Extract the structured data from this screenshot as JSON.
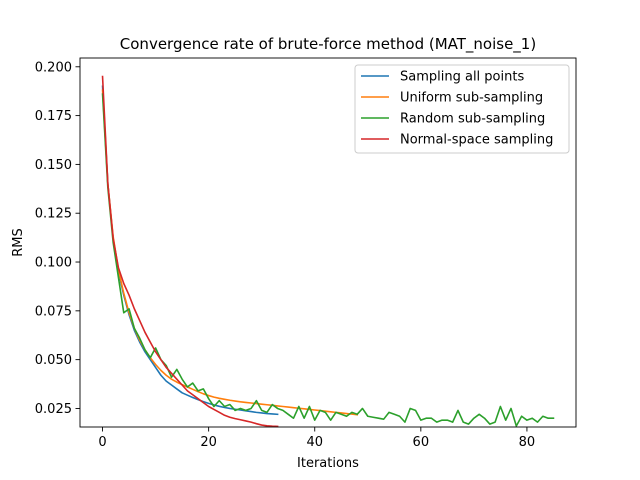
{
  "chart_data": {
    "type": "line",
    "title": "Convergence rate of brute-force method (MAT_noise_1)",
    "xlabel": "Iterations",
    "ylabel": "RMS",
    "xlim": [
      -4.25,
      89.25
    ],
    "ylim": [
      0.0155,
      0.2045
    ],
    "xticks": [
      0,
      20,
      40,
      60,
      80
    ],
    "xtick_labels": [
      "0",
      "20",
      "40",
      "60",
      "80"
    ],
    "yticks": [
      0.025,
      0.05,
      0.075,
      0.1,
      0.125,
      0.15,
      0.175,
      0.2
    ],
    "ytick_labels": [
      "0.025",
      "0.050",
      "0.075",
      "0.100",
      "0.125",
      "0.150",
      "0.175",
      "0.200"
    ],
    "grid": false,
    "legend_position": "top-right",
    "series": [
      {
        "name": "Sampling all points",
        "color": "#1f77b4",
        "x": [
          0,
          1,
          2,
          3,
          4,
          5,
          6,
          7,
          8,
          9,
          10,
          11,
          12,
          13,
          14,
          15,
          16,
          17,
          18,
          19,
          20,
          21,
          22,
          23,
          24,
          25,
          26,
          27,
          28,
          29,
          30,
          31,
          32,
          33
        ],
        "y": [
          0.19,
          0.14,
          0.112,
          0.095,
          0.083,
          0.073,
          0.065,
          0.059,
          0.054,
          0.05,
          0.046,
          0.042,
          0.039,
          0.037,
          0.035,
          0.033,
          0.0318,
          0.0306,
          0.0295,
          0.0285,
          0.0276,
          0.0268,
          0.0261,
          0.0255,
          0.025,
          0.0246,
          0.0242,
          0.0238,
          0.0234,
          0.023,
          0.0227,
          0.0224,
          0.0222,
          0.022
        ]
      },
      {
        "name": "Uniform sub-sampling",
        "color": "#ff7f0e",
        "x": [
          0,
          1,
          2,
          3,
          4,
          5,
          6,
          7,
          8,
          9,
          10,
          11,
          12,
          13,
          14,
          15,
          16,
          17,
          18,
          19,
          20,
          21,
          22,
          23,
          24,
          25,
          26,
          27,
          28,
          29,
          30,
          31,
          32,
          33,
          34,
          35,
          36,
          37,
          38,
          39,
          40,
          41,
          42,
          43,
          44,
          45,
          46,
          47,
          48
        ],
        "y": [
          0.188,
          0.14,
          0.113,
          0.096,
          0.084,
          0.074,
          0.066,
          0.06,
          0.055,
          0.051,
          0.0475,
          0.0445,
          0.042,
          0.04,
          0.0385,
          0.0372,
          0.036,
          0.0348,
          0.0336,
          0.0325,
          0.0316,
          0.0308,
          0.0302,
          0.0297,
          0.0292,
          0.0288,
          0.0284,
          0.0281,
          0.0278,
          0.0275,
          0.0272,
          0.0269,
          0.0266,
          0.0263,
          0.026,
          0.0257,
          0.0254,
          0.0251,
          0.0248,
          0.0245,
          0.0242,
          0.0239,
          0.0236,
          0.0233,
          0.023,
          0.0227,
          0.0224,
          0.0221,
          0.0218
        ]
      },
      {
        "name": "Random sub-sampling",
        "color": "#2ca02c",
        "x": [
          0,
          1,
          2,
          3,
          4,
          5,
          6,
          7,
          8,
          9,
          10,
          11,
          12,
          13,
          14,
          15,
          16,
          17,
          18,
          19,
          20,
          21,
          22,
          23,
          24,
          25,
          26,
          27,
          28,
          29,
          30,
          31,
          32,
          33,
          34,
          35,
          36,
          37,
          38,
          39,
          40,
          41,
          42,
          43,
          44,
          45,
          46,
          47,
          48,
          49,
          50,
          51,
          52,
          53,
          54,
          55,
          56,
          57,
          58,
          59,
          60,
          61,
          62,
          63,
          64,
          65,
          66,
          67,
          68,
          69,
          70,
          71,
          72,
          73,
          74,
          75,
          76,
          77,
          78,
          79,
          80,
          81,
          82,
          83,
          84,
          85
        ],
        "y": [
          0.186,
          0.138,
          0.11,
          0.092,
          0.074,
          0.076,
          0.066,
          0.061,
          0.055,
          0.051,
          0.056,
          0.05,
          0.047,
          0.041,
          0.045,
          0.04,
          0.036,
          0.038,
          0.034,
          0.035,
          0.03,
          0.026,
          0.029,
          0.026,
          0.027,
          0.024,
          0.025,
          0.024,
          0.025,
          0.029,
          0.024,
          0.023,
          0.027,
          0.025,
          0.024,
          0.022,
          0.02,
          0.026,
          0.02,
          0.026,
          0.019,
          0.024,
          0.023,
          0.019,
          0.023,
          0.022,
          0.021,
          0.023,
          0.022,
          0.025,
          0.021,
          0.0205,
          0.02,
          0.0195,
          0.023,
          0.022,
          0.021,
          0.018,
          0.025,
          0.024,
          0.019,
          0.02,
          0.02,
          0.018,
          0.019,
          0.019,
          0.018,
          0.024,
          0.018,
          0.017,
          0.02,
          0.022,
          0.02,
          0.017,
          0.018,
          0.026,
          0.019,
          0.025,
          0.016,
          0.021,
          0.019,
          0.02,
          0.018,
          0.021,
          0.02,
          0.02
        ]
      },
      {
        "name": "Normal-space sampling",
        "color": "#d62728",
        "x": [
          0,
          1,
          2,
          3,
          4,
          5,
          6,
          7,
          8,
          9,
          10,
          11,
          12,
          13,
          14,
          15,
          16,
          17,
          18,
          19,
          20,
          21,
          22,
          23,
          24,
          25,
          26,
          27,
          28,
          29,
          30,
          31,
          32,
          33
        ],
        "y": [
          0.195,
          0.14,
          0.112,
          0.097,
          0.089,
          0.083,
          0.076,
          0.07,
          0.064,
          0.059,
          0.054,
          0.05,
          0.046,
          0.043,
          0.04,
          0.037,
          0.034,
          0.032,
          0.03,
          0.028,
          0.026,
          0.0245,
          0.023,
          0.0215,
          0.0205,
          0.0198,
          0.0192,
          0.0186,
          0.018,
          0.0172,
          0.0165,
          0.0161,
          0.0159,
          0.0158
        ]
      }
    ]
  }
}
